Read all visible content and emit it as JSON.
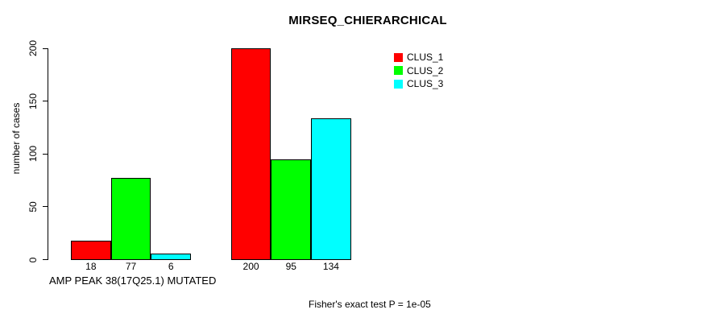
{
  "figure": {
    "background": "#ffffff",
    "text_color": "#000000"
  },
  "chart_data": {
    "type": "bar",
    "title": "MIRSEQ_CHIERARCHICAL",
    "ylabel": "number of cases",
    "xlabel": "AMP PEAK 38(17Q25.1) MUTATED",
    "annotation": "Fisher's exact test P = 1e-05",
    "ylim": [
      0,
      200
    ],
    "yticks": [
      0,
      50,
      100,
      150,
      200
    ],
    "grid": false,
    "legend_position": "top-right",
    "categories": [
      "",
      ""
    ],
    "series": [
      {
        "name": "CLUS_1",
        "color": "#ff0000",
        "values": [
          18,
          200
        ]
      },
      {
        "name": "CLUS_2",
        "color": "#00ff00",
        "values": [
          77,
          95
        ]
      },
      {
        "name": "CLUS_3",
        "color": "#00ffff",
        "values": [
          6,
          134
        ]
      }
    ],
    "bar_border_color": "#000000",
    "show_bar_value_labels": true
  }
}
